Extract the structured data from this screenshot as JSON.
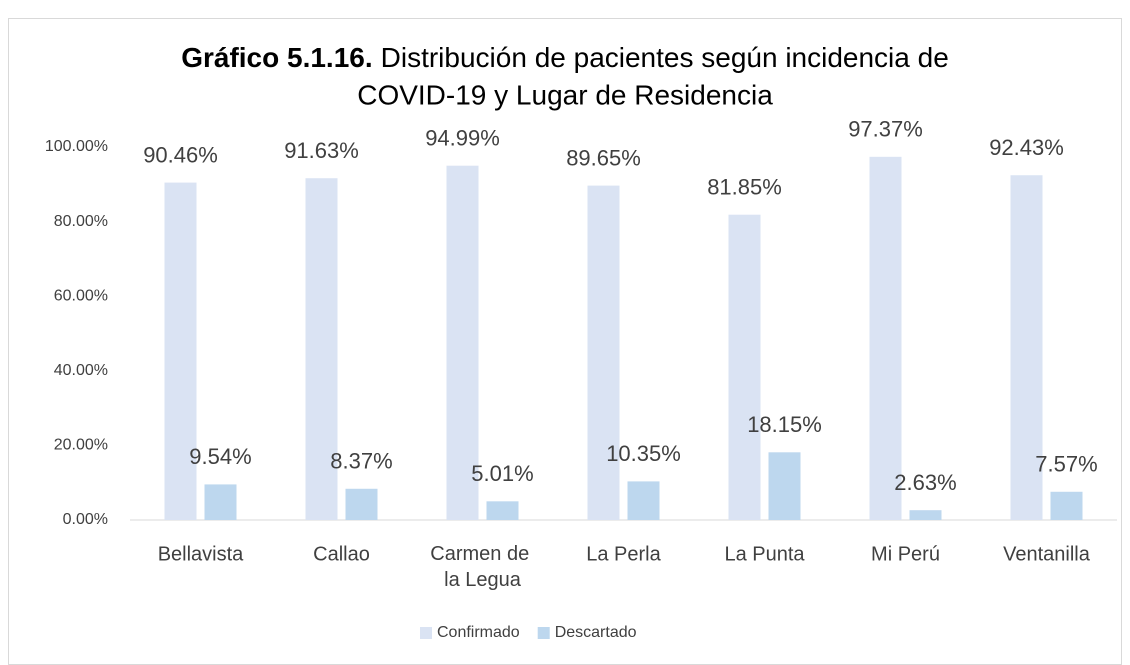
{
  "chart_data": {
    "type": "bar",
    "title": [
      "Gráfico 5.1.16.",
      "Distribución de pacientes según incidencia de",
      "COVID-19 y Lugar de Residencia"
    ],
    "categories": [
      "Bellavista",
      "Callao",
      "Carmen de la Legua",
      "La Perla",
      "La Punta",
      "Mi Perú",
      "Ventanilla"
    ],
    "series": [
      {
        "name": "Confirmado",
        "color": "#dae3f3",
        "values": [
          90.46,
          91.63,
          94.99,
          89.65,
          81.85,
          97.37,
          92.43
        ],
        "value_labels": [
          "90.46%",
          "91.63%",
          "94.99%",
          "89.65%",
          "81.85%",
          "97.37%",
          "92.43%"
        ]
      },
      {
        "name": "Descartado",
        "color": "#bdd7ee",
        "values": [
          9.54,
          8.37,
          5.01,
          10.35,
          18.15,
          2.63,
          7.57
        ],
        "value_labels": [
          "9.54%",
          "8.37%",
          "5.01%",
          "10.35%",
          "18.15%",
          "2.63%",
          "7.57%"
        ]
      }
    ],
    "ylim": [
      0,
      100
    ],
    "yticks": [
      {
        "value": 0,
        "label": "0.00%"
      },
      {
        "value": 20,
        "label": "20.00%"
      },
      {
        "value": 40,
        "label": "40.00%"
      },
      {
        "value": 60,
        "label": "60.00%"
      },
      {
        "value": 80,
        "label": "80.00%"
      },
      {
        "value": 100,
        "label": "100.00%"
      }
    ],
    "grid": false,
    "legend": "bottom"
  }
}
